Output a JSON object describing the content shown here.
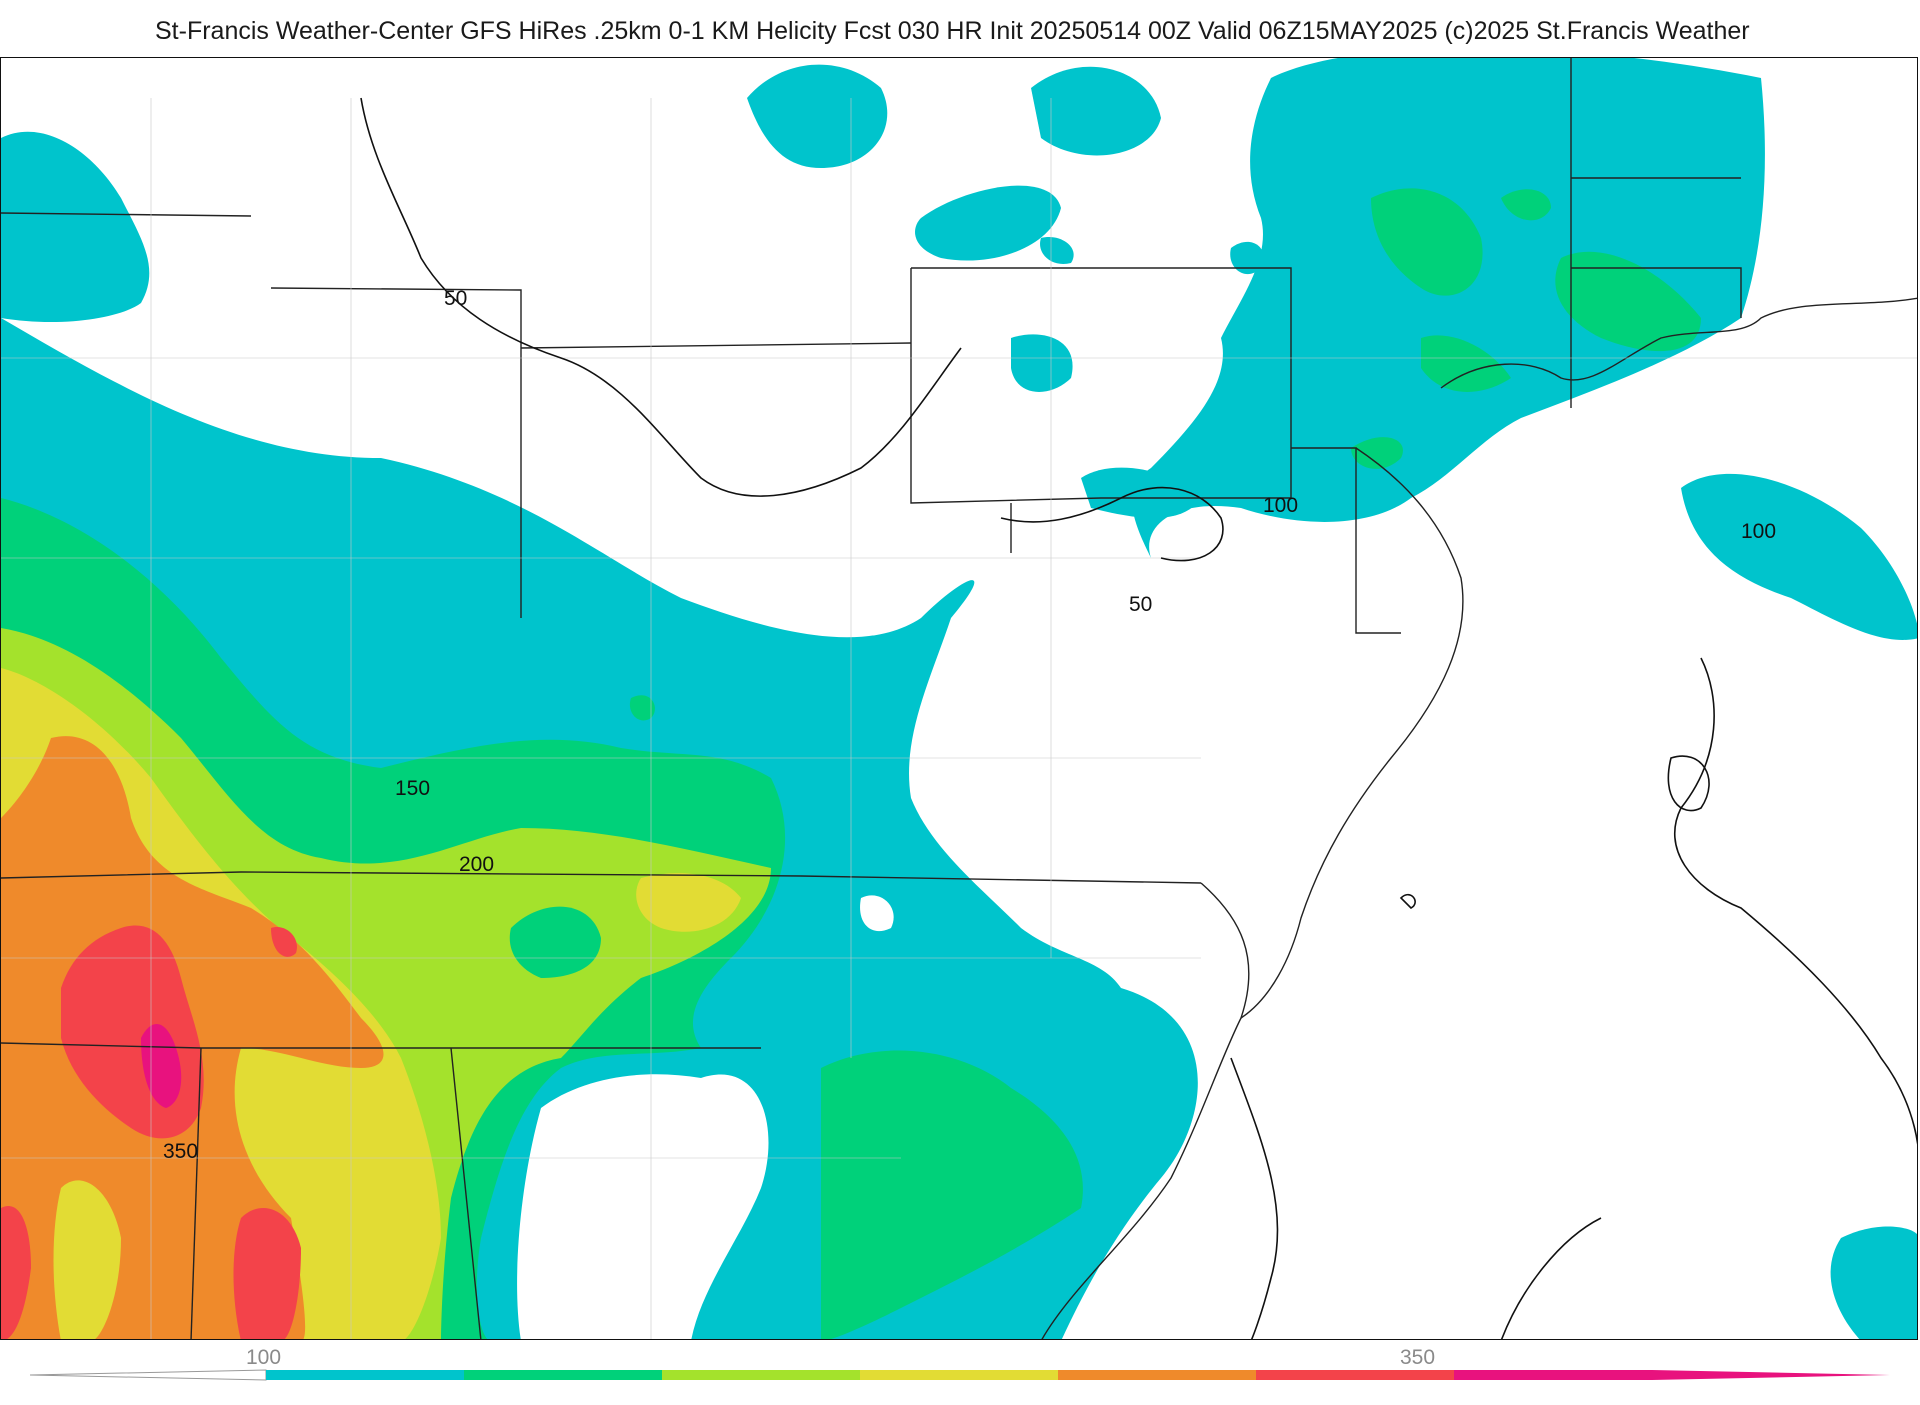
{
  "title": "St-Francis Weather-Center GFS HiRes .25km 0-1 KM Helicity Fcst 030 HR Init 20250514 00Z  Valid 06Z15MAY2025    (c)2025 St.Francis Weather",
  "map": {
    "contour_labels": [
      "50",
      "100",
      "100",
      "50",
      "150",
      "200",
      "350"
    ],
    "field": "0-1 KM Helicity",
    "region": "Eastern United States"
  },
  "colorbar": {
    "tick_labels": [
      "100",
      "350"
    ],
    "colors": [
      "#00c4cc",
      "#00d17a",
      "#a4e22c",
      "#e2dc34",
      "#ef8a2b",
      "#f3434a",
      "#e8127e"
    ]
  },
  "colors": {
    "cyan": "#00c4cc",
    "green": "#00d17a",
    "lime": "#a4e22c",
    "yellow": "#e2dc34",
    "orange": "#ef8a2b",
    "red": "#f3434a",
    "magenta": "#e8127e"
  }
}
